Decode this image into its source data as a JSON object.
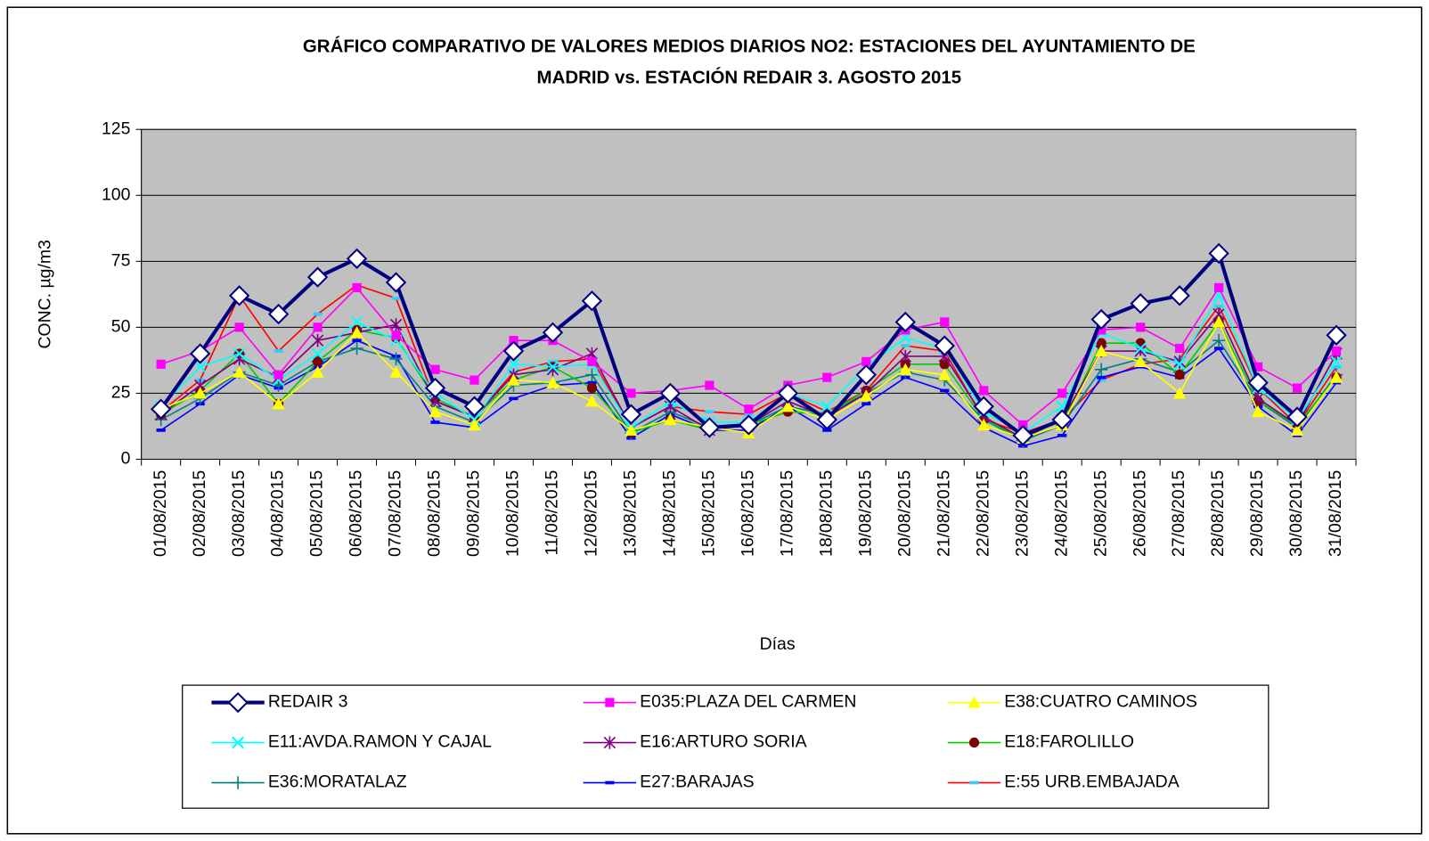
{
  "chart_data": {
    "type": "line",
    "title": [
      "GRÁFICO COMPARATIVO DE VALORES MEDIOS DIARIOS NO2: ESTACIONES DEL AYUNTAMIENTO DE",
      "MADRID vs.  ESTACIÓN REDAIR 3. AGOSTO 2015"
    ],
    "y_label": "CONC.   µg/m3",
    "x_label": "Días",
    "categories": [
      "01/08/2015",
      "02/08/2015",
      "03/08/2015",
      "04/08/2015",
      "05/08/2015",
      "06/08/2015",
      "07/08/2015",
      "08/08/2015",
      "09/08/2015",
      "10/08/2015",
      "11/08/2015",
      "12/08/2015",
      "13/08/2015",
      "14/08/2015",
      "15/08/2015",
      "16/08/2015",
      "17/08/2015",
      "18/08/2015",
      "19/08/2015",
      "20/08/2015",
      "21/08/2015",
      "22/08/2015",
      "23/08/2015",
      "24/08/2015",
      "25/08/2015",
      "26/08/2015",
      "27/08/2015",
      "28/08/2015",
      "29/08/2015",
      "30/08/2015",
      "31/08/2015"
    ],
    "ylim": [
      0,
      125
    ],
    "yticks": [
      0,
      25,
      50,
      75,
      100,
      125
    ],
    "grid": true,
    "plot_background": "#c0c0c0",
    "legend": "bottom",
    "series": [
      {
        "name": "REDAIR 3",
        "color": "#000080",
        "marker": "diamond",
        "marker_color": "#000080",
        "values": [
          19,
          40,
          62,
          55,
          69,
          76,
          67,
          27,
          20,
          41,
          48,
          60,
          17,
          25,
          12,
          13,
          25,
          15,
          32,
          52,
          43,
          20,
          9,
          15,
          53,
          59,
          62,
          78,
          29,
          16,
          47
        ]
      },
      {
        "name": "E035:PLAZA DEL CARMEN",
        "color": "#ff00ff",
        "marker": "square",
        "marker_color": "#ff00ff",
        "values": [
          36,
          41,
          50,
          32,
          50,
          65,
          47,
          34,
          30,
          45,
          45,
          37,
          25,
          26,
          28,
          19,
          28,
          31,
          37,
          49,
          52,
          26,
          13,
          25,
          49,
          50,
          42,
          65,
          35,
          27,
          41
        ]
      },
      {
        "name": "E38:CUATRO CAMINOS",
        "color": "#ffff00",
        "marker": "triangle",
        "marker_color": "#ffff00",
        "values": [
          19,
          25,
          33,
          21,
          33,
          48,
          33,
          18,
          13,
          30,
          29,
          22,
          11,
          15,
          12,
          10,
          20,
          15,
          24,
          34,
          32,
          13,
          8,
          13,
          41,
          37,
          25,
          52,
          18,
          11,
          31
        ]
      },
      {
        "name": "E11:AVDA.RAMON Y CAJAL",
        "color": "#00ffff",
        "marker": "x",
        "marker_color": "#00ffff",
        "values": [
          20,
          35,
          40,
          30,
          40,
          52,
          45,
          25,
          15,
          36,
          35,
          36,
          12,
          22,
          14,
          14,
          25,
          20,
          35,
          46,
          42,
          18,
          10,
          20,
          48,
          42,
          36,
          62,
          27,
          15,
          37
        ]
      },
      {
        "name": "E16:ARTURO SORIA",
        "color": "#800080",
        "marker": "star",
        "marker_color": "#800080",
        "values": [
          17,
          28,
          38,
          31,
          45,
          48,
          51,
          22,
          16,
          32,
          34,
          40,
          12,
          20,
          11,
          13,
          22,
          16,
          25,
          39,
          39,
          16,
          8,
          15,
          41,
          41,
          37,
          55,
          23,
          13,
          40
        ]
      },
      {
        "name": "E18:FAROLILLO",
        "color": "#00cc00",
        "marker": "circle",
        "marker_color": "#800000",
        "values": [
          17,
          26,
          40,
          21,
          37,
          49,
          46,
          23,
          16,
          30,
          35,
          27,
          10,
          15,
          11,
          13,
          18,
          17,
          26,
          36,
          36,
          15,
          8,
          13,
          44,
          44,
          32,
          52,
          22,
          13,
          31
        ]
      },
      {
        "name": "E36:MORATALAZ",
        "color": "#008080",
        "marker": "plus",
        "marker_color": "#008080",
        "values": [
          15,
          23,
          33,
          28,
          37,
          42,
          38,
          20,
          14,
          28,
          29,
          32,
          10,
          18,
          12,
          13,
          20,
          17,
          25,
          33,
          30,
          15,
          7,
          13,
          34,
          38,
          33,
          45,
          22,
          12,
          32
        ]
      },
      {
        "name": "E27:BARAJAS",
        "color": "#0000ff",
        "marker": "dash",
        "marker_color": "#0000ff",
        "values": [
          11,
          21,
          32,
          27,
          35,
          45,
          39,
          14,
          12,
          23,
          28,
          29,
          8,
          17,
          11,
          11,
          20,
          11,
          21,
          31,
          26,
          12,
          5,
          9,
          31,
          35,
          31,
          42,
          20,
          9,
          29
        ]
      },
      {
        "name": "E:55 URB.EMBAJADA",
        "color": "#ff0000",
        "marker": "dash",
        "marker_color": "#33ccff",
        "values": [
          18,
          30,
          62,
          41,
          55,
          66,
          61,
          22,
          16,
          33,
          37,
          38,
          12,
          20,
          18,
          17,
          25,
          18,
          26,
          43,
          41,
          15,
          10,
          15,
          30,
          36,
          38,
          58,
          27,
          13,
          35
        ]
      }
    ]
  }
}
